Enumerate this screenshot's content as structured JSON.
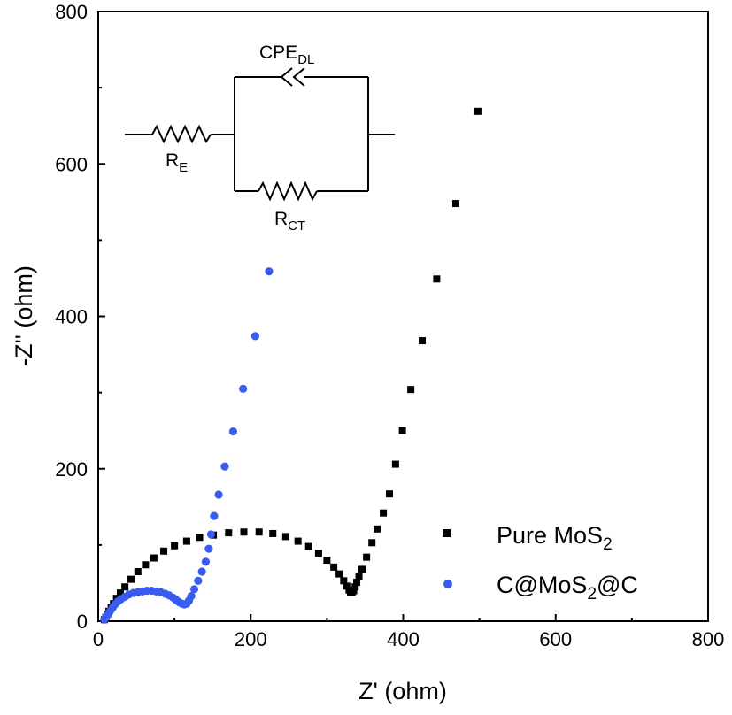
{
  "chart_data": {
    "type": "scatter",
    "xlabel": "Z' (ohm)",
    "ylabel": "-Z'' (ohm)",
    "xlim": [
      0,
      800
    ],
    "ylim": [
      0,
      800
    ],
    "xticks": [
      "0",
      "200",
      "400",
      "600",
      "800"
    ],
    "yticks": [
      "0",
      "200",
      "400",
      "600",
      "800"
    ],
    "grid": false,
    "legend_placement": "bottom-right",
    "series": [
      {
        "name": "Pure MoS",
        "name_sub": "2",
        "marker": "square",
        "color": "#000000",
        "points": [
          [
            8,
            2
          ],
          [
            10,
            5
          ],
          [
            12,
            9
          ],
          [
            14,
            13
          ],
          [
            17,
            18
          ],
          [
            20,
            23
          ],
          [
            24,
            30
          ],
          [
            29,
            37
          ],
          [
            35,
            45
          ],
          [
            43,
            55
          ],
          [
            52,
            65
          ],
          [
            62,
            74
          ],
          [
            73,
            83
          ],
          [
            86,
            92
          ],
          [
            100,
            99
          ],
          [
            116,
            105
          ],
          [
            133,
            110
          ],
          [
            151,
            113
          ],
          [
            171,
            116
          ],
          [
            191,
            117
          ],
          [
            211,
            117
          ],
          [
            229,
            115
          ],
          [
            246,
            111
          ],
          [
            262,
            105
          ],
          [
            276,
            98
          ],
          [
            289,
            89
          ],
          [
            300,
            80
          ],
          [
            309,
            71
          ],
          [
            316,
            62
          ],
          [
            322,
            53
          ],
          [
            326,
            46
          ],
          [
            329,
            41
          ],
          [
            331,
            38
          ],
          [
            333,
            38
          ],
          [
            335,
            40
          ],
          [
            337,
            45
          ],
          [
            339,
            51
          ],
          [
            342,
            58
          ],
          [
            346,
            68
          ],
          [
            352,
            84
          ],
          [
            359,
            103
          ],
          [
            366,
            121
          ],
          [
            374,
            142
          ],
          [
            382,
            167
          ],
          [
            390,
            206
          ],
          [
            399,
            250
          ],
          [
            410,
            304
          ],
          [
            425,
            368
          ],
          [
            444,
            449
          ],
          [
            469,
            548
          ],
          [
            498,
            669
          ]
        ]
      },
      {
        "name": "C@MoS",
        "name_sub": "2",
        "name_suffix": "@C",
        "marker": "circle",
        "color": "#3a5bf0",
        "points": [
          [
            8,
            2
          ],
          [
            10,
            5
          ],
          [
            12,
            8
          ],
          [
            14,
            11
          ],
          [
            16,
            14
          ],
          [
            19,
            18
          ],
          [
            22,
            22
          ],
          [
            26,
            26
          ],
          [
            30,
            29
          ],
          [
            35,
            32
          ],
          [
            40,
            35
          ],
          [
            46,
            37
          ],
          [
            52,
            38
          ],
          [
            58,
            39
          ],
          [
            64,
            40
          ],
          [
            70,
            40
          ],
          [
            76,
            39
          ],
          [
            82,
            38
          ],
          [
            88,
            36
          ],
          [
            93,
            34
          ],
          [
            98,
            31
          ],
          [
            102,
            28
          ],
          [
            106,
            25
          ],
          [
            110,
            23
          ],
          [
            113,
            22
          ],
          [
            116,
            23
          ],
          [
            119,
            27
          ],
          [
            122,
            33
          ],
          [
            126,
            42
          ],
          [
            131,
            53
          ],
          [
            136,
            65
          ],
          [
            141,
            78
          ],
          [
            145,
            95
          ],
          [
            148,
            114
          ],
          [
            152,
            138
          ],
          [
            158,
            166
          ],
          [
            166,
            203
          ],
          [
            177,
            249
          ],
          [
            190,
            305
          ],
          [
            206,
            374
          ],
          [
            224,
            459
          ]
        ]
      }
    ],
    "annotations": [
      {
        "label": "CPE",
        "sub": "DL"
      },
      {
        "label": "R",
        "sub": "E"
      },
      {
        "label": "R",
        "sub": "CT"
      }
    ]
  }
}
